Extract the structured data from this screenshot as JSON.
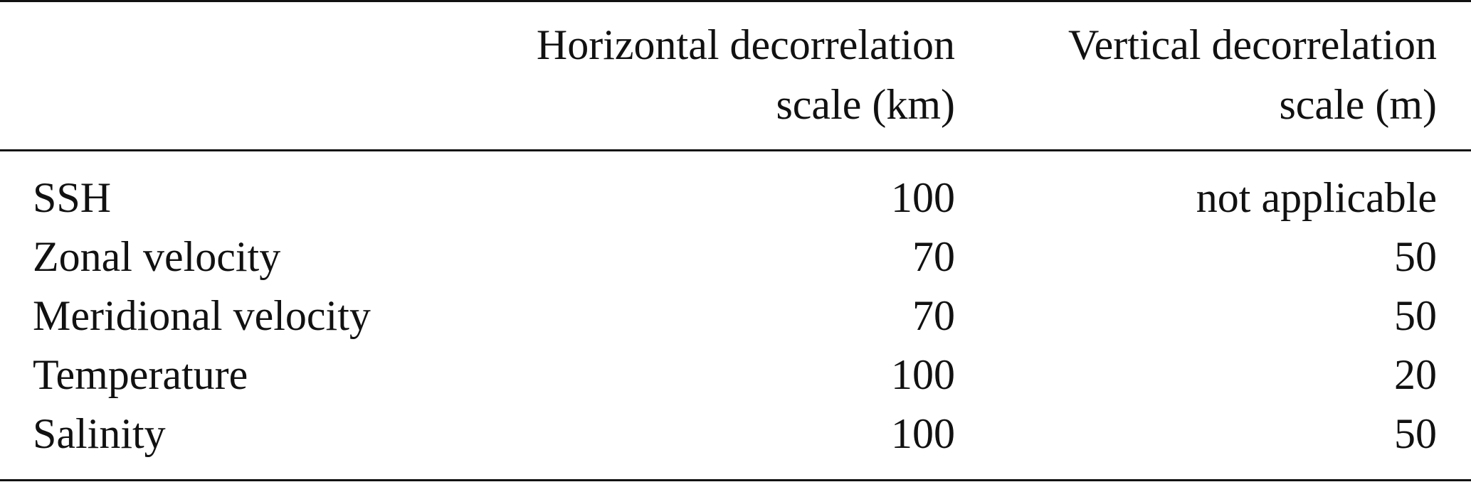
{
  "table": {
    "headers": [
      "",
      [
        "Horizontal decorrelation",
        "scale (km)"
      ],
      [
        "Vertical decorrelation",
        "scale (m)"
      ]
    ],
    "rows": [
      [
        "SSH",
        "100",
        "not applicable"
      ],
      [
        "Zonal velocity",
        "70",
        "50"
      ],
      [
        "Meridional velocity",
        "70",
        "50"
      ],
      [
        "Temperature",
        "100",
        "20"
      ],
      [
        "Salinity",
        "100",
        "50"
      ]
    ]
  }
}
